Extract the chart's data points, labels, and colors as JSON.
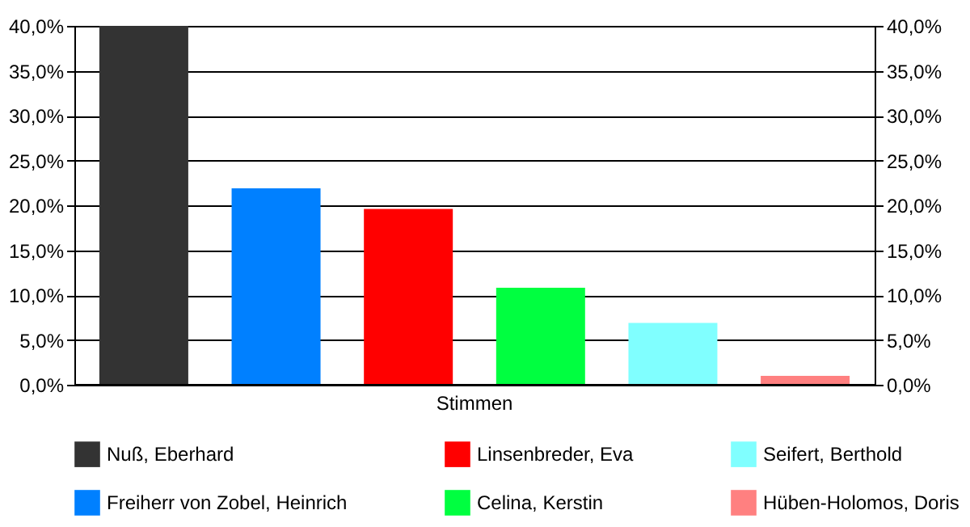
{
  "chart_data": {
    "type": "bar",
    "categories": [
      "Stimmen"
    ],
    "series": [
      {
        "name": "Nuß, Eberhard",
        "color": "#333333",
        "values": [
          40.0
        ]
      },
      {
        "name": "Freiherr von Zobel, Heinrich",
        "color": "#0080ff",
        "values": [
          21.9
        ]
      },
      {
        "name": "Linsenbreder, Eva",
        "color": "#ff0000",
        "values": [
          19.6
        ]
      },
      {
        "name": "Celina, Kerstin",
        "color": "#00ff40",
        "values": [
          10.8
        ]
      },
      {
        "name": "Seifert, Berthold",
        "color": "#80ffff",
        "values": [
          6.9
        ]
      },
      {
        "name": "Hüben-Holomos, Doris",
        "color": "#ff8080",
        "values": [
          1.0
        ]
      }
    ],
    "ylim": [
      0,
      40
    ],
    "yticks": [
      {
        "value": 0,
        "label": "0,0%"
      },
      {
        "value": 5,
        "label": "5,0%"
      },
      {
        "value": 10,
        "label": "10,0%"
      },
      {
        "value": 15,
        "label": "15,0%"
      },
      {
        "value": 20,
        "label": "20,0%"
      },
      {
        "value": 25,
        "label": "25,0%"
      },
      {
        "value": 30,
        "label": "30,0%"
      },
      {
        "value": 35,
        "label": "35,0%"
      },
      {
        "value": 40,
        "label": "40,0%"
      }
    ],
    "grid": "y",
    "legend": "bottom"
  }
}
